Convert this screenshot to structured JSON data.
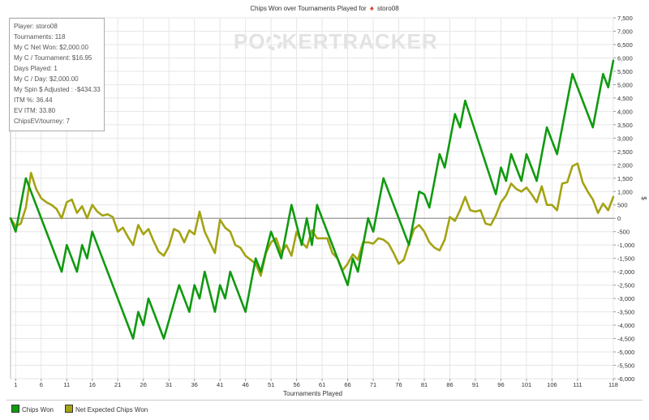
{
  "title": {
    "text": "Chips Won over Tournaments Played for",
    "player": "storo08",
    "icon": "spade-icon"
  },
  "watermark": {
    "part1": "PO",
    "part2": "KER",
    "part3": "TRACKER"
  },
  "stats": [
    "Player: storo08",
    "Tournaments: 118",
    "My C Net Won: $2,000.00",
    "My C / Tournament: $16.95",
    "Days Played: 1",
    "My C / Day: $2,000.00",
    "My Spin $ Adjusted : -$434.33",
    "ITM %: 36.44",
    "EV ITM: 33.80",
    "ChipsEV/tourney: 7"
  ],
  "chart_data": {
    "type": "line",
    "title": "Chips Won over Tournaments Played for storo08",
    "xlabel": "Tournaments Played",
    "ylabel": "$",
    "xlim": [
      0,
      118
    ],
    "ylim": [
      -6000,
      7500
    ],
    "x_ticks": [
      1,
      6,
      11,
      16,
      21,
      26,
      31,
      36,
      41,
      46,
      51,
      56,
      61,
      66,
      71,
      76,
      81,
      86,
      91,
      96,
      101,
      106,
      111,
      118
    ],
    "y_ticks": [
      7500,
      7000,
      6500,
      6000,
      5500,
      5000,
      4500,
      4000,
      3500,
      3000,
      2500,
      2000,
      1500,
      1000,
      500,
      0,
      -500,
      -1000,
      -1500,
      -2000,
      -2500,
      -3000,
      -3500,
      -4000,
      -4500,
      -5000,
      -5500,
      -6000
    ],
    "y_tick_labels": [
      "7,500",
      "7,000",
      "6,500",
      "6,000",
      "5,500",
      "5,000",
      "4,500",
      "4,000",
      "3,500",
      "3,000",
      "2,500",
      "2,000",
      "1,500",
      "1,000",
      "500",
      "0",
      "-500",
      "-1,000",
      "-1,500",
      "-2,000",
      "-2,500",
      "-3,000",
      "-3,500",
      "-4,000",
      "-4,500",
      "-5,000",
      "-5,500",
      "-6,000"
    ],
    "grid": true,
    "legend": "bottom-left",
    "series": [
      {
        "name": "Chips Won",
        "color": "#109a10",
        "points": [
          [
            0,
            0
          ],
          [
            1,
            -500
          ],
          [
            3,
            1500
          ],
          [
            10,
            -2000
          ],
          [
            11,
            -1000
          ],
          [
            13,
            -2000
          ],
          [
            14,
            -1000
          ],
          [
            15,
            -1500
          ],
          [
            16,
            -500
          ],
          [
            24,
            -4500
          ],
          [
            25,
            -3500
          ],
          [
            26,
            -4000
          ],
          [
            27,
            -3000
          ],
          [
            30,
            -4500
          ],
          [
            33,
            -2500
          ],
          [
            35,
            -3500
          ],
          [
            36,
            -2500
          ],
          [
            37,
            -3000
          ],
          [
            38,
            -2000
          ],
          [
            40,
            -3500
          ],
          [
            41,
            -2500
          ],
          [
            42,
            -3000
          ],
          [
            43,
            -2000
          ],
          [
            46,
            -3500
          ],
          [
            48,
            -1500
          ],
          [
            49,
            -2000
          ],
          [
            51,
            -500
          ],
          [
            53,
            -1500
          ],
          [
            55,
            500
          ],
          [
            57,
            -1000
          ],
          [
            58,
            0
          ],
          [
            59,
            -1000
          ],
          [
            60,
            500
          ],
          [
            66,
            -2500
          ],
          [
            67,
            -1500
          ],
          [
            68,
            -2000
          ],
          [
            70,
            0
          ],
          [
            71,
            -500
          ],
          [
            73,
            1500
          ],
          [
            78,
            -1000
          ],
          [
            80,
            1000
          ],
          [
            81,
            900
          ],
          [
            82,
            400
          ],
          [
            84,
            2400
          ],
          [
            85,
            1900
          ],
          [
            87,
            3900
          ],
          [
            88,
            3400
          ],
          [
            89,
            4400
          ],
          [
            95,
            900
          ],
          [
            96,
            1900
          ],
          [
            97,
            1400
          ],
          [
            98,
            2400
          ],
          [
            100,
            1400
          ],
          [
            101,
            2400
          ],
          [
            103,
            1400
          ],
          [
            105,
            3400
          ],
          [
            107,
            2400
          ],
          [
            110,
            5400
          ],
          [
            114,
            3400
          ],
          [
            116,
            5400
          ],
          [
            117,
            4900
          ],
          [
            118,
            5900
          ]
        ]
      },
      {
        "name": "Net Expected Chips Won",
        "color": "#a3a313",
        "points": [
          [
            0,
            0
          ],
          [
            1,
            -300
          ],
          [
            2,
            -200
          ],
          [
            3,
            400
          ],
          [
            4,
            1700
          ],
          [
            5,
            1100
          ],
          [
            6,
            750
          ],
          [
            7,
            600
          ],
          [
            8,
            500
          ],
          [
            9,
            350
          ],
          [
            10,
            0
          ],
          [
            11,
            600
          ],
          [
            12,
            700
          ],
          [
            13,
            200
          ],
          [
            14,
            450
          ],
          [
            15,
            0
          ],
          [
            16,
            500
          ],
          [
            17,
            250
          ],
          [
            18,
            100
          ],
          [
            19,
            150
          ],
          [
            20,
            50
          ],
          [
            21,
            -500
          ],
          [
            22,
            -350
          ],
          [
            23,
            -700
          ],
          [
            24,
            -1000
          ],
          [
            25,
            -250
          ],
          [
            26,
            -600
          ],
          [
            27,
            -400
          ],
          [
            28,
            -850
          ],
          [
            29,
            -1250
          ],
          [
            30,
            -1400
          ],
          [
            31,
            -1050
          ],
          [
            32,
            -400
          ],
          [
            33,
            -500
          ],
          [
            34,
            -900
          ],
          [
            35,
            -450
          ],
          [
            36,
            -600
          ],
          [
            37,
            250
          ],
          [
            38,
            -500
          ],
          [
            39,
            -900
          ],
          [
            40,
            -1300
          ],
          [
            41,
            -50
          ],
          [
            42,
            -350
          ],
          [
            43,
            -500
          ],
          [
            44,
            -1000
          ],
          [
            45,
            -1100
          ],
          [
            46,
            -1400
          ],
          [
            47,
            -1550
          ],
          [
            48,
            -1700
          ],
          [
            49,
            -2150
          ],
          [
            50,
            -1300
          ],
          [
            51,
            -900
          ],
          [
            52,
            -750
          ],
          [
            53,
            -1300
          ],
          [
            54,
            -1000
          ],
          [
            55,
            -1400
          ],
          [
            56,
            -500
          ],
          [
            57,
            -900
          ],
          [
            58,
            -1100
          ],
          [
            59,
            -450
          ],
          [
            60,
            -750
          ],
          [
            61,
            -750
          ],
          [
            62,
            -750
          ],
          [
            63,
            -1300
          ],
          [
            64,
            -1500
          ],
          [
            65,
            -1950
          ],
          [
            66,
            -1700
          ],
          [
            67,
            -1350
          ],
          [
            68,
            -1550
          ],
          [
            69,
            -900
          ],
          [
            70,
            -900
          ],
          [
            71,
            -950
          ],
          [
            72,
            -750
          ],
          [
            73,
            -800
          ],
          [
            74,
            -950
          ],
          [
            75,
            -1300
          ],
          [
            76,
            -1700
          ],
          [
            77,
            -1550
          ],
          [
            78,
            -950
          ],
          [
            79,
            -400
          ],
          [
            80,
            -250
          ],
          [
            81,
            -500
          ],
          [
            82,
            -900
          ],
          [
            83,
            -1100
          ],
          [
            84,
            -1200
          ],
          [
            85,
            -800
          ],
          [
            86,
            50
          ],
          [
            87,
            -100
          ],
          [
            88,
            300
          ],
          [
            89,
            800
          ],
          [
            90,
            300
          ],
          [
            91,
            250
          ],
          [
            92,
            300
          ],
          [
            93,
            -200
          ],
          [
            94,
            -250
          ],
          [
            95,
            100
          ],
          [
            96,
            600
          ],
          [
            97,
            850
          ],
          [
            98,
            1300
          ],
          [
            99,
            1100
          ],
          [
            100,
            1000
          ],
          [
            101,
            1150
          ],
          [
            102,
            900
          ],
          [
            103,
            600
          ],
          [
            104,
            1200
          ],
          [
            105,
            500
          ],
          [
            106,
            500
          ],
          [
            107,
            300
          ],
          [
            108,
            1300
          ],
          [
            109,
            1350
          ],
          [
            110,
            1950
          ],
          [
            111,
            2050
          ],
          [
            112,
            1350
          ],
          [
            113,
            1000
          ],
          [
            114,
            700
          ],
          [
            115,
            200
          ],
          [
            116,
            550
          ],
          [
            117,
            300
          ],
          [
            118,
            800
          ]
        ]
      }
    ]
  }
}
